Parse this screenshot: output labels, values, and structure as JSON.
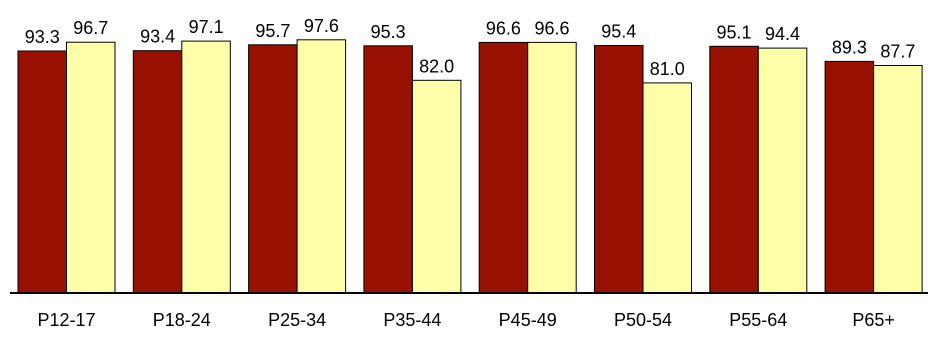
{
  "chart_data": {
    "type": "bar",
    "categories": [
      "P12-17",
      "P18-24",
      "P25-34",
      "P35-44",
      "P45-49",
      "P50-54",
      "P55-64",
      "P65+"
    ],
    "series": [
      {
        "values": [
          93.3,
          93.4,
          95.7,
          95.3,
          96.6,
          95.4,
          95.1,
          89.3
        ],
        "color": "#991100"
      },
      {
        "values": [
          96.7,
          97.1,
          97.6,
          82.0,
          96.6,
          81.0,
          94.4,
          87.7
        ],
        "color": "#FFFFAA"
      }
    ],
    "data_labels": [
      [
        "93.3",
        "93.4",
        "95.7",
        "95.3",
        "96.6",
        "95.4",
        "95.1",
        "89.3"
      ],
      [
        "96.7",
        "97.1",
        "97.6",
        "82.0",
        "96.6",
        "81.0",
        "94.4",
        "87.7"
      ]
    ],
    "ylim": [
      0,
      100
    ],
    "title": "",
    "xlabel": "",
    "ylabel": "",
    "grid": false,
    "legend": "none"
  }
}
